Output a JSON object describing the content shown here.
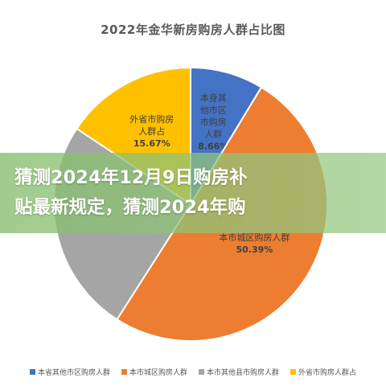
{
  "chart_data": {
    "type": "pie",
    "title": "2022年金华新房购房人群占比图",
    "series": [
      {
        "name": "本省其他市区购房人群",
        "value": 8.66,
        "label_lines": [
          "本身其",
          "他市区",
          "市购房",
          "人群"
        ],
        "percent_label": "8.66%",
        "color": "#4472C4"
      },
      {
        "name": "本市城区购房人群",
        "value": 50.39,
        "label_lines": [
          "本市城区购房人群"
        ],
        "percent_label": "50.39%",
        "color": "#ED7D31"
      },
      {
        "name": "本市其他县市购房人群",
        "value": 25.28,
        "label_lines": [],
        "percent_label": "",
        "color": "#A5A5A5"
      },
      {
        "name": "外省市购房人群占",
        "value": 15.67,
        "label_lines": [
          "外省市购房",
          "人群占"
        ],
        "percent_label": "15.67%",
        "color": "#FFC000"
      }
    ],
    "legend_position": "bottom"
  },
  "banner": {
    "line1": "猜测2024年12月9日购房补",
    "line2": "贴最新规定，猜测2024年购"
  }
}
